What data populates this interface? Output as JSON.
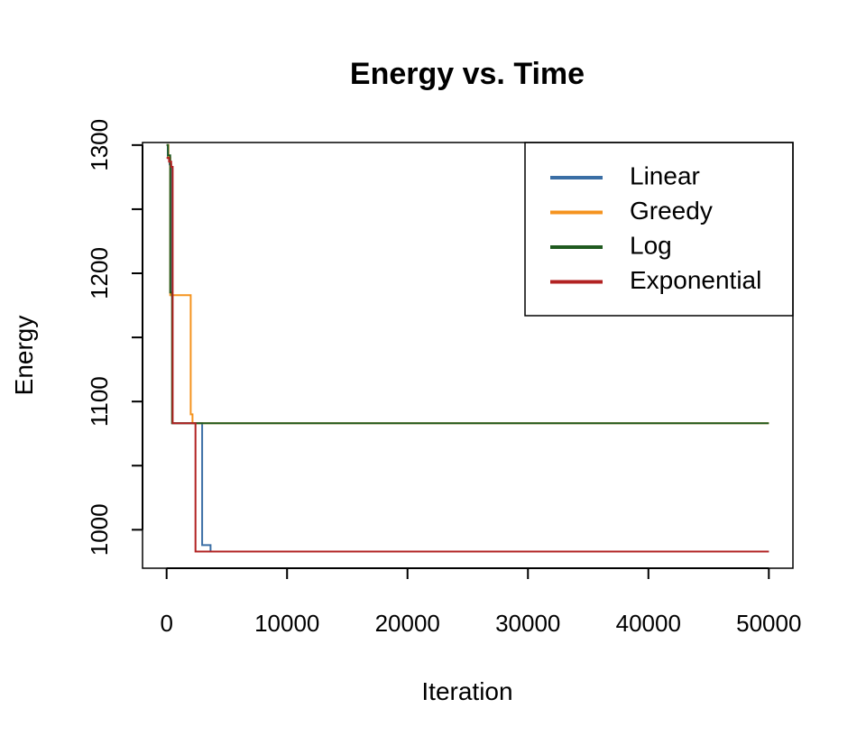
{
  "chart_data": {
    "type": "line",
    "title": "Energy vs. Time",
    "xlabel": "Iteration",
    "ylabel": "Energy",
    "xlim": [
      -2000,
      52000
    ],
    "ylim": [
      970,
      1302
    ],
    "xticks": [
      0,
      10000,
      20000,
      30000,
      40000,
      50000
    ],
    "yticks": [
      1000,
      1050,
      1100,
      1150,
      1200,
      1250,
      1300
    ],
    "ytick_labels": [
      "1000",
      "",
      "1100",
      "",
      "1200",
      "",
      "1300"
    ],
    "grid": false,
    "legend_position": "top-right",
    "series": [
      {
        "name": "Linear",
        "color": "#3a6ea5",
        "step": true,
        "points": [
          [
            0,
            1300
          ],
          [
            100,
            1290
          ],
          [
            250,
            1285
          ],
          [
            380,
            1183
          ],
          [
            480,
            1083
          ],
          [
            2900,
            1083
          ],
          [
            2950,
            988
          ],
          [
            3600,
            988
          ],
          [
            3650,
            983
          ],
          [
            50000,
            983
          ]
        ]
      },
      {
        "name": "Greedy",
        "color": "#f5931e",
        "step": true,
        "points": [
          [
            0,
            1300
          ],
          [
            150,
            1290
          ],
          [
            300,
            1183
          ],
          [
            1950,
            1183
          ],
          [
            2000,
            1090
          ],
          [
            2150,
            1083
          ],
          [
            50000,
            1083
          ]
        ]
      },
      {
        "name": "Log",
        "color": "#1f5a1f",
        "step": true,
        "points": [
          [
            0,
            1300
          ],
          [
            120,
            1292
          ],
          [
            300,
            1185
          ],
          [
            450,
            1083
          ],
          [
            50000,
            1083
          ]
        ]
      },
      {
        "name": "Exponential",
        "color": "#b22222",
        "step": true,
        "points": [
          [
            0,
            1290
          ],
          [
            200,
            1287
          ],
          [
            380,
            1283
          ],
          [
            500,
            1083
          ],
          [
            2350,
            1083
          ],
          [
            2400,
            983
          ],
          [
            50000,
            983
          ]
        ]
      }
    ]
  }
}
